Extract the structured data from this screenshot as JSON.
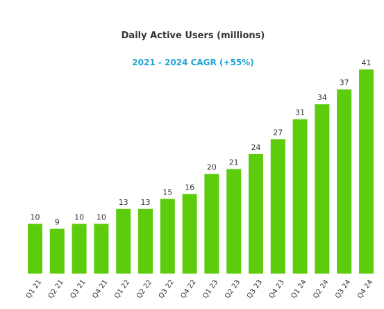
{
  "chart_data": {
    "type": "bar",
    "title": "Daily Active Users (millions)",
    "subtitle": "2021 - 2024 CAGR (+55%)",
    "categories": [
      "Q1 21",
      "Q2 21",
      "Q3 21",
      "Q4 21",
      "Q1 22",
      "Q2 22",
      "Q3 22",
      "Q4 22",
      "Q1 23",
      "Q2 23",
      "Q3 23",
      "Q4 23",
      "Q1 24",
      "Q2 24",
      "Q3 24",
      "Q4 24"
    ],
    "values": [
      10,
      9,
      10,
      10,
      13,
      13,
      15,
      16,
      20,
      21,
      24,
      27,
      31,
      34,
      37,
      41
    ],
    "data_labels": [
      "10",
      "9",
      "10",
      "10",
      "13",
      "13",
      "15",
      "16",
      "20",
      "21",
      "24",
      "27",
      "31",
      "34",
      "37",
      "41"
    ],
    "xlabel": "",
    "ylabel": "",
    "ylim": [
      0,
      41
    ],
    "grid": false,
    "legend": "none",
    "colors": {
      "bar": "#5ccc0c",
      "title": "#333333",
      "subtitle": "#1fa2d6",
      "labels": "#333333"
    }
  }
}
